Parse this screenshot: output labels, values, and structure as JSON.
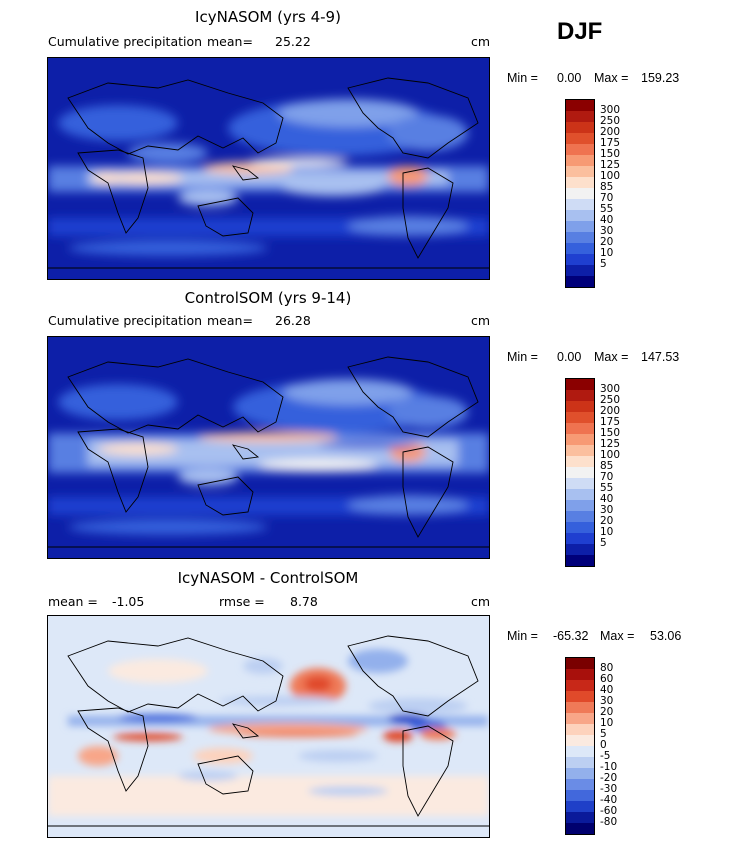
{
  "season": "DJF",
  "colors": {
    "precip_scale": [
      "#8b0000",
      "#b01a10",
      "#cc3318",
      "#e0502c",
      "#ef7350",
      "#f79a74",
      "#fbbf9e",
      "#fde0cc",
      "#f2f2f2",
      "#cfdcf5",
      "#a8c0f0",
      "#7fa0ea",
      "#587fe2",
      "#3560dc",
      "#1f3fd0",
      "#0d1fa8",
      "#00007a"
    ],
    "diff_scale": [
      "#7a0000",
      "#a8100c",
      "#c82818",
      "#e04a2a",
      "#ef7a58",
      "#f8a688",
      "#fdd2bc",
      "#fbeae0",
      "#dde8f8",
      "#bccff2",
      "#93b0ec",
      "#6a8ce6",
      "#4268dc",
      "#1f40c8",
      "#0a1a9a",
      "#00006e"
    ]
  },
  "panels": [
    {
      "id": "icy",
      "title": "IcyNASOM (yrs 4-9)",
      "left_label": "Cumulative precipitation",
      "mean_label": "mean=",
      "mean_value": "25.22",
      "units": "cm",
      "min_label": "Min =",
      "min_value": "0.00",
      "max_label": "Max =",
      "max_value": "159.23",
      "colorbar_labels": [
        "300",
        "250",
        "200",
        "175",
        "150",
        "125",
        "100",
        "85",
        "70",
        "55",
        "40",
        "30",
        "20",
        "10",
        "5"
      ]
    },
    {
      "id": "ctrl",
      "title": "ControlSOM (yrs 9-14)",
      "left_label": "Cumulative precipitation",
      "mean_label": "mean=",
      "mean_value": "26.28",
      "units": "cm",
      "min_label": "Min =",
      "min_value": "0.00",
      "max_label": "Max =",
      "max_value": "147.53",
      "colorbar_labels": [
        "300",
        "250",
        "200",
        "175",
        "150",
        "125",
        "100",
        "85",
        "70",
        "55",
        "40",
        "30",
        "20",
        "10",
        "5"
      ]
    },
    {
      "id": "diff",
      "title": "IcyNASOM - ControlSOM",
      "mean_label": "mean =",
      "mean_value": "-1.05",
      "rmse_label": "rmse =",
      "rmse_value": "8.78",
      "units": "cm",
      "min_label": "Min =",
      "min_value": "-65.32",
      "max_label": "Max =",
      "max_value": "53.06",
      "colorbar_labels": [
        "80",
        "60",
        "40",
        "30",
        "20",
        "10",
        "5",
        "0",
        "-5",
        "-10",
        "-20",
        "-30",
        "-40",
        "-60",
        "-80"
      ]
    }
  ]
}
